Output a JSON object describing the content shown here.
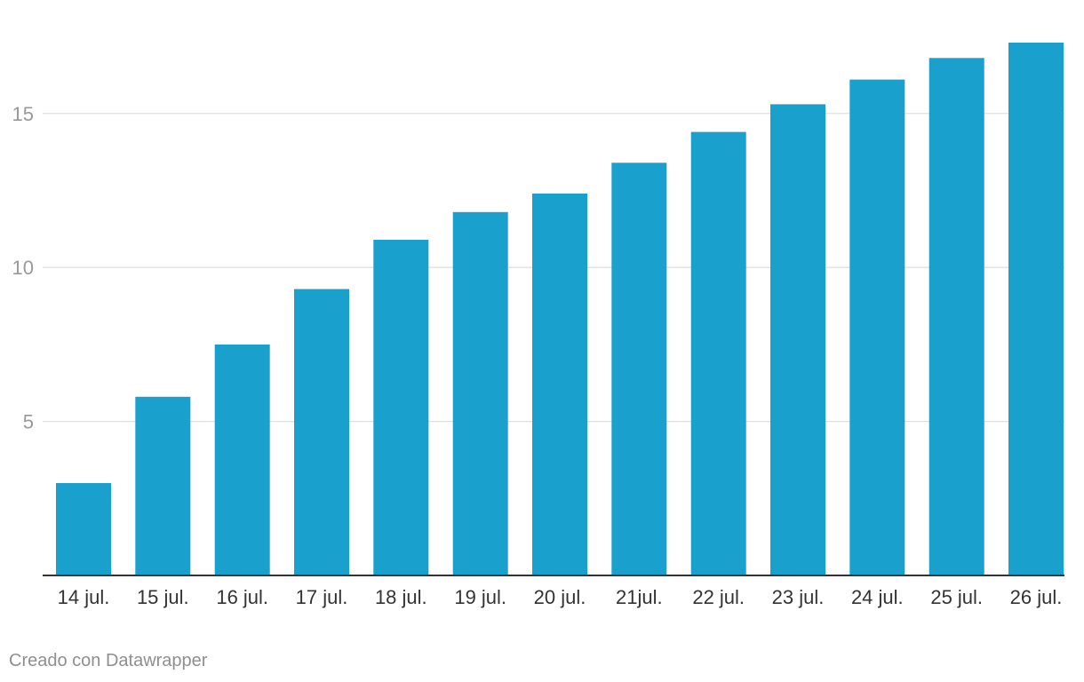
{
  "chart_data": {
    "type": "bar",
    "categories": [
      "14 jul.",
      "15 jul.",
      "16 jul.",
      "17 jul.",
      "18 jul.",
      "19 jul.",
      "20 jul.",
      "21jul.",
      "22 jul.",
      "23 jul.",
      "24 jul.",
      "25 jul.",
      "26 jul."
    ],
    "values": [
      3.0,
      5.8,
      7.5,
      9.3,
      10.9,
      11.8,
      12.4,
      13.4,
      14.4,
      15.3,
      16.1,
      16.8,
      17.3
    ],
    "title": "",
    "xlabel": "",
    "ylabel": "",
    "ylim": [
      0,
      17.3
    ],
    "yticks": [
      5,
      10,
      15
    ],
    "grid": true,
    "bar_color": "#1aa0cc",
    "gridline_color": "#e0e0e0",
    "baseline_color": "#333333"
  },
  "footer": {
    "credit": "Creado con Datawrapper"
  }
}
